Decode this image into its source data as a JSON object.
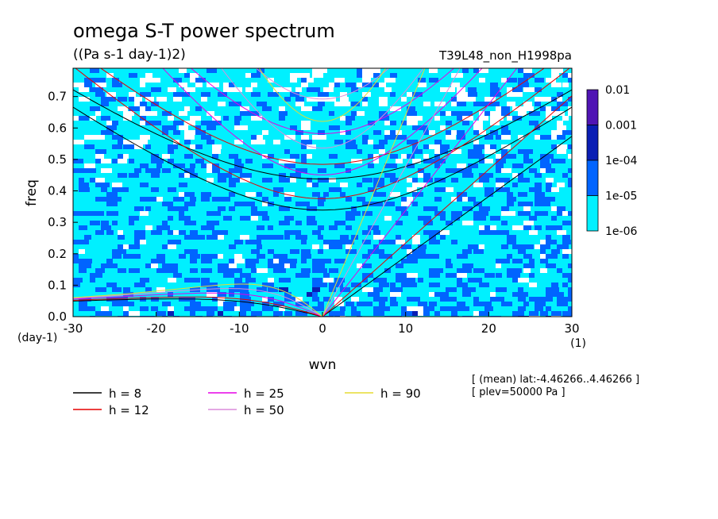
{
  "chart_data": {
    "type": "heatmap",
    "title": "omega S-T power spectrum",
    "subtitle": "((Pa s-1 day-1)2)",
    "run_label": "T39L48_non_H1998pa",
    "xlabel": "wvn",
    "ylabel": "freq",
    "x_unit": "(1)",
    "y_unit": "(day-1)",
    "xlim": [
      -30,
      30
    ],
    "ylim": [
      0,
      0.79
    ],
    "x_ticks": [
      "-30",
      "-20",
      "-10",
      "0",
      "10",
      "20",
      "30"
    ],
    "y_ticks": [
      "0.0",
      "0.1",
      "0.2",
      "0.3",
      "0.4",
      "0.5",
      "0.6",
      "0.7"
    ],
    "colorbar": {
      "scale": "log",
      "levels": [
        "0.01",
        "0.001",
        "1e-04",
        "1e-05",
        "1e-06"
      ],
      "colors": [
        "#ffffff",
        "#00f0ff",
        "#0064ff",
        "#0a1eb4",
        "#5014b4"
      ]
    },
    "dispersion_curves": [
      {
        "name": "h =  8",
        "color": "#000000"
      },
      {
        "name": "h = 12",
        "color": "#e60000"
      },
      {
        "name": "h = 25",
        "color": "#e600e6"
      },
      {
        "name": "h = 50",
        "color": "#dc8cdc"
      },
      {
        "name": "h = 90",
        "color": "#e6dc32"
      }
    ],
    "annotations": [
      "[ (mean) lat:-4.46266..4.46266 ]",
      "[ plev=50000 Pa ]"
    ],
    "grid": false
  }
}
